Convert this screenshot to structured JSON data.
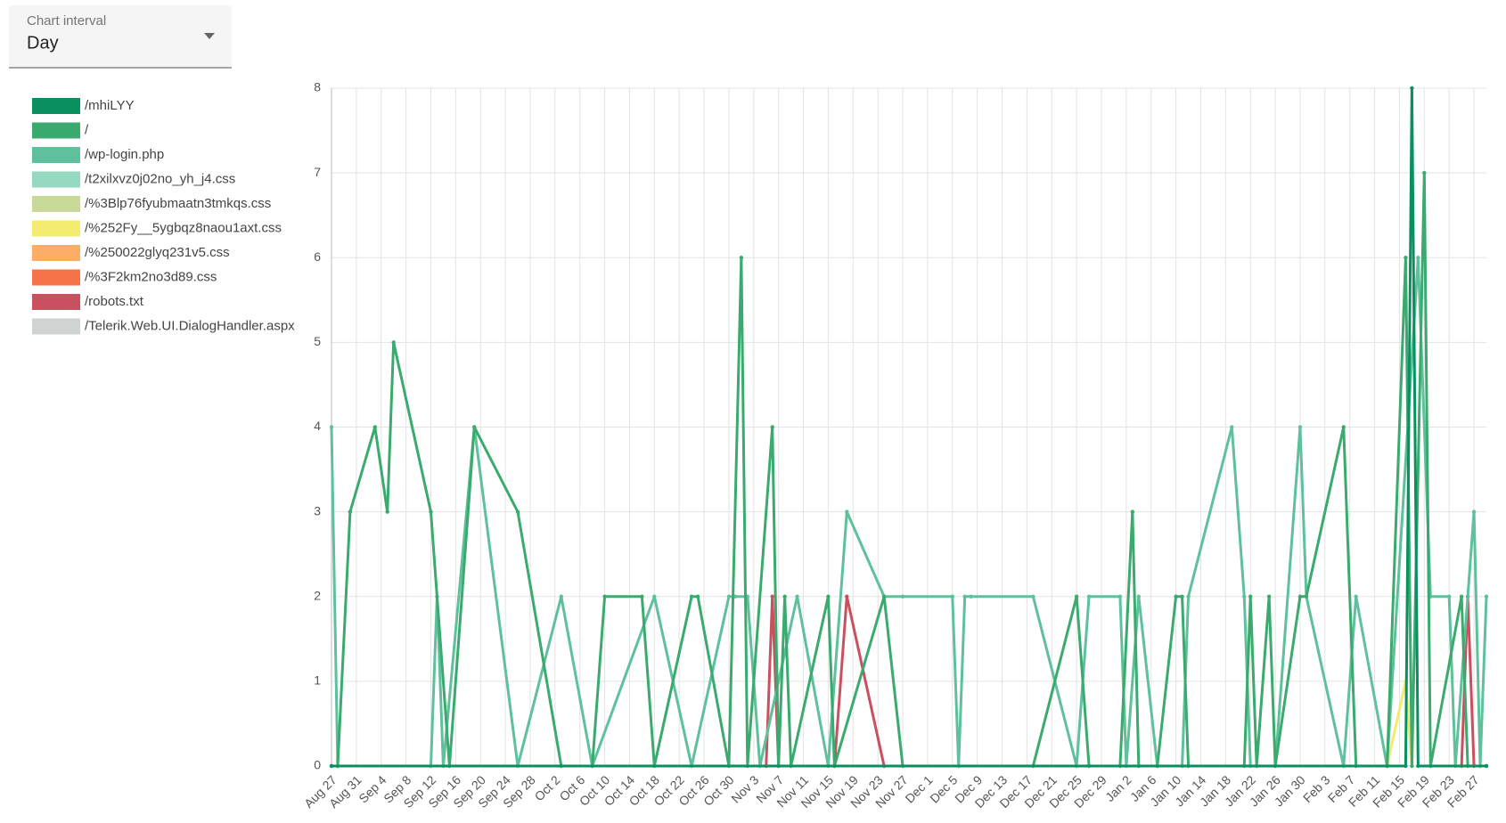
{
  "control": {
    "label": "Chart interval",
    "value": "Day"
  },
  "chart_data": {
    "type": "line",
    "xlim": [
      0,
      186
    ],
    "ylim": [
      0,
      8
    ],
    "yticks": [
      0,
      1,
      2,
      3,
      4,
      5,
      6,
      7,
      8
    ],
    "xticks": [
      {
        "value": 0,
        "label": "Aug 27"
      },
      {
        "value": 4,
        "label": "Aug 31"
      },
      {
        "value": 8,
        "label": "Sep 4"
      },
      {
        "value": 12,
        "label": "Sep 8"
      },
      {
        "value": 16,
        "label": "Sep 12"
      },
      {
        "value": 20,
        "label": "Sep 16"
      },
      {
        "value": 24,
        "label": "Sep 20"
      },
      {
        "value": 28,
        "label": "Sep 24"
      },
      {
        "value": 32,
        "label": "Sep 28"
      },
      {
        "value": 36,
        "label": "Oct 2"
      },
      {
        "value": 40,
        "label": "Oct 6"
      },
      {
        "value": 44,
        "label": "Oct 10"
      },
      {
        "value": 48,
        "label": "Oct 14"
      },
      {
        "value": 52,
        "label": "Oct 18"
      },
      {
        "value": 56,
        "label": "Oct 22"
      },
      {
        "value": 60,
        "label": "Oct 26"
      },
      {
        "value": 64,
        "label": "Oct 30"
      },
      {
        "value": 68,
        "label": "Nov 3"
      },
      {
        "value": 72,
        "label": "Nov 7"
      },
      {
        "value": 76,
        "label": "Nov 11"
      },
      {
        "value": 80,
        "label": "Nov 15"
      },
      {
        "value": 84,
        "label": "Nov 19"
      },
      {
        "value": 88,
        "label": "Nov 23"
      },
      {
        "value": 92,
        "label": "Nov 27"
      },
      {
        "value": 96,
        "label": "Dec 1"
      },
      {
        "value": 100,
        "label": "Dec 5"
      },
      {
        "value": 104,
        "label": "Dec 9"
      },
      {
        "value": 108,
        "label": "Dec 13"
      },
      {
        "value": 112,
        "label": "Dec 17"
      },
      {
        "value": 116,
        "label": "Dec 21"
      },
      {
        "value": 120,
        "label": "Dec 25"
      },
      {
        "value": 124,
        "label": "Dec 29"
      },
      {
        "value": 128,
        "label": "Jan 2"
      },
      {
        "value": 132,
        "label": "Jan 6"
      },
      {
        "value": 136,
        "label": "Jan 10"
      },
      {
        "value": 140,
        "label": "Jan 14"
      },
      {
        "value": 144,
        "label": "Jan 18"
      },
      {
        "value": 148,
        "label": "Jan 22"
      },
      {
        "value": 152,
        "label": "Jan 26"
      },
      {
        "value": 156,
        "label": "Jan 30"
      },
      {
        "value": 160,
        "label": "Feb 3"
      },
      {
        "value": 164,
        "label": "Feb 7"
      },
      {
        "value": 168,
        "label": "Feb 11"
      },
      {
        "value": 172,
        "label": "Feb 15"
      },
      {
        "value": 176,
        "label": "Feb 19"
      },
      {
        "value": 180,
        "label": "Feb 23"
      },
      {
        "value": 184,
        "label": "Feb 27"
      }
    ],
    "grid": true,
    "series": [
      {
        "name": "/mhiLYY",
        "color": "#0a8f5f",
        "x": [
          0,
          173,
          174,
          175,
          186
        ],
        "values": [
          0,
          0,
          8,
          0,
          0
        ]
      },
      {
        "name": "/",
        "color": "#3aaa6f",
        "x": [
          0,
          1,
          3,
          7,
          9,
          10,
          16,
          19,
          23,
          30,
          37,
          42,
          44,
          50,
          52,
          58,
          59,
          64,
          66,
          67,
          71,
          72,
          73,
          74,
          80,
          81,
          89,
          92,
          113,
          120,
          122,
          127,
          129,
          130,
          133,
          136,
          137,
          138,
          147,
          148,
          149,
          151,
          152,
          156,
          157,
          163,
          165,
          170,
          173,
          174,
          176,
          177,
          182,
          183,
          186
        ],
        "values": [
          0,
          0,
          3,
          4,
          3,
          5,
          3,
          0,
          4,
          3,
          0,
          0,
          2,
          2,
          0,
          2,
          2,
          0,
          6,
          0,
          4,
          0,
          2,
          0,
          2,
          0,
          2,
          0,
          0,
          2,
          0,
          0,
          3,
          0,
          0,
          2,
          2,
          0,
          0,
          2,
          0,
          2,
          0,
          2,
          2,
          4,
          0,
          0,
          6,
          0,
          7,
          0,
          2,
          0,
          0
        ]
      },
      {
        "name": "/wp-login.php",
        "color": "#5fc09c",
        "x": [
          0,
          1,
          16,
          17,
          18,
          23,
          30,
          37,
          42,
          52,
          58,
          64,
          65,
          67,
          69,
          75,
          80,
          83,
          89,
          92,
          100,
          101,
          102,
          103,
          113,
          120,
          122,
          127,
          128,
          130,
          133,
          137,
          138,
          145,
          147,
          148,
          152,
          156,
          157,
          163,
          165,
          170,
          175,
          177,
          180,
          181,
          184,
          185,
          186
        ],
        "values": [
          4,
          0,
          0,
          2,
          0,
          4,
          0,
          2,
          0,
          2,
          0,
          2,
          2,
          2,
          0,
          2,
          0,
          3,
          2,
          2,
          2,
          0,
          2,
          2,
          2,
          0,
          2,
          2,
          0,
          2,
          0,
          0,
          2,
          4,
          2,
          0,
          0,
          4,
          2,
          0,
          2,
          0,
          6,
          2,
          2,
          0,
          3,
          0,
          2
        ]
      },
      {
        "name": "/t2xilxvz0j02no_yh_j4.css",
        "color": "#95d9c0"
      },
      {
        "name": "/%3Blp76fyubmaatn3tmkqs.css",
        "color": "#c9d998"
      },
      {
        "name": "/%252Fy__5ygbqz8naou1axt.css",
        "color": "#f4ec70",
        "x": [
          170,
          173,
          174
        ],
        "values": [
          0,
          1,
          0
        ]
      },
      {
        "name": "/%250022glyq231v5.css",
        "color": "#fdad64"
      },
      {
        "name": "/%3F2km2no3d89.css",
        "color": "#f6734a"
      },
      {
        "name": "/robots.txt",
        "color": "#c9515f",
        "x": [
          70,
          71,
          72,
          73,
          81,
          83,
          89,
          90,
          182,
          183,
          184
        ],
        "values": [
          0,
          2,
          0,
          null,
          0,
          2,
          0,
          null,
          0,
          2,
          0
        ]
      },
      {
        "name": "/Telerik.Web.UI.DialogHandler.aspx",
        "color": "#cfd4d3"
      }
    ]
  }
}
